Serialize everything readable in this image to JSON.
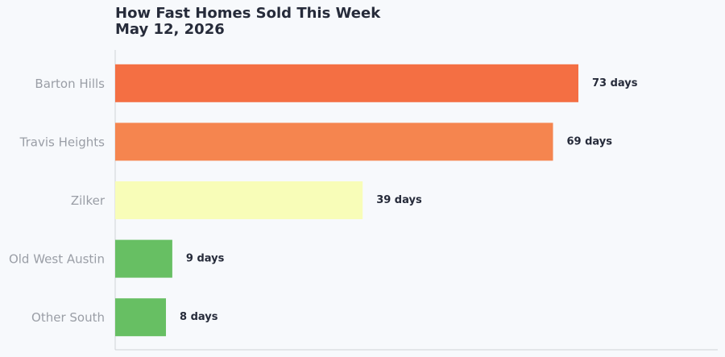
{
  "chart_data": {
    "type": "barh",
    "title": "How Fast Homes Sold This Week",
    "subtitle": "May 12, 2026",
    "categories": [
      "Barton Hills",
      "Travis Heights",
      "Zilker",
      "Old West Austin",
      "Other South"
    ],
    "values": [
      73,
      69,
      39,
      9,
      8
    ],
    "value_labels": [
      "73 days",
      "69 days",
      "39 days",
      "9 days",
      "8 days"
    ],
    "colors": [
      "#f46f43",
      "#f5854f",
      "#f8fdb8",
      "#67bf63",
      "#67bf63"
    ]
  }
}
